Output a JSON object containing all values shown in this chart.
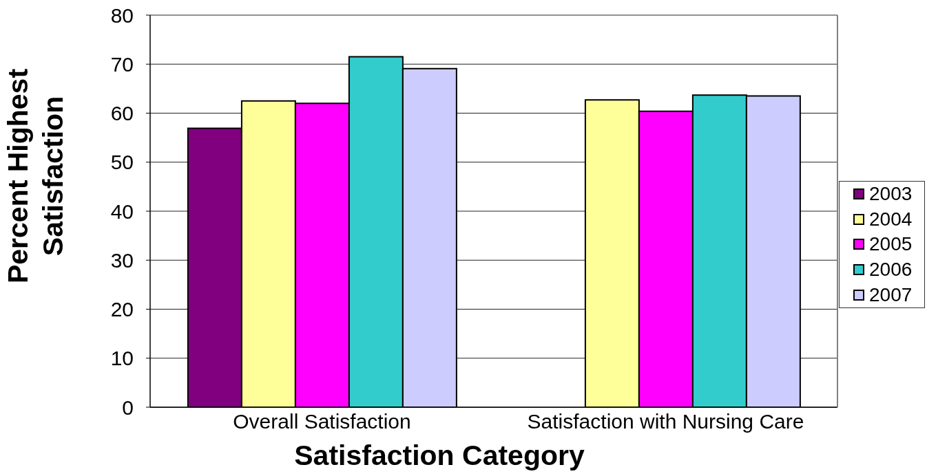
{
  "chart_data": {
    "type": "bar",
    "xlabel": "Satisfaction Category",
    "ylabel": "Percent Highest Satisfaction",
    "categories": [
      "Overall Satisfaction",
      "Satisfaction with Nursing Care"
    ],
    "series": [
      {
        "name": "2003",
        "color": "#800080",
        "values": [
          56.9,
          null
        ]
      },
      {
        "name": "2004",
        "color": "#ffff99",
        "values": [
          62.5,
          62.7
        ]
      },
      {
        "name": "2005",
        "color": "#ff00ff",
        "values": [
          62.0,
          60.4
        ]
      },
      {
        "name": "2006",
        "color": "#33cccc",
        "values": [
          71.5,
          63.7
        ]
      },
      {
        "name": "2007",
        "color": "#ccccff",
        "values": [
          69.1,
          63.5
        ]
      }
    ],
    "ylim": [
      0,
      80
    ],
    "yticks": [
      0,
      10,
      20,
      30,
      40,
      50,
      60,
      70,
      80
    ],
    "grid": "y",
    "legend": "right"
  }
}
